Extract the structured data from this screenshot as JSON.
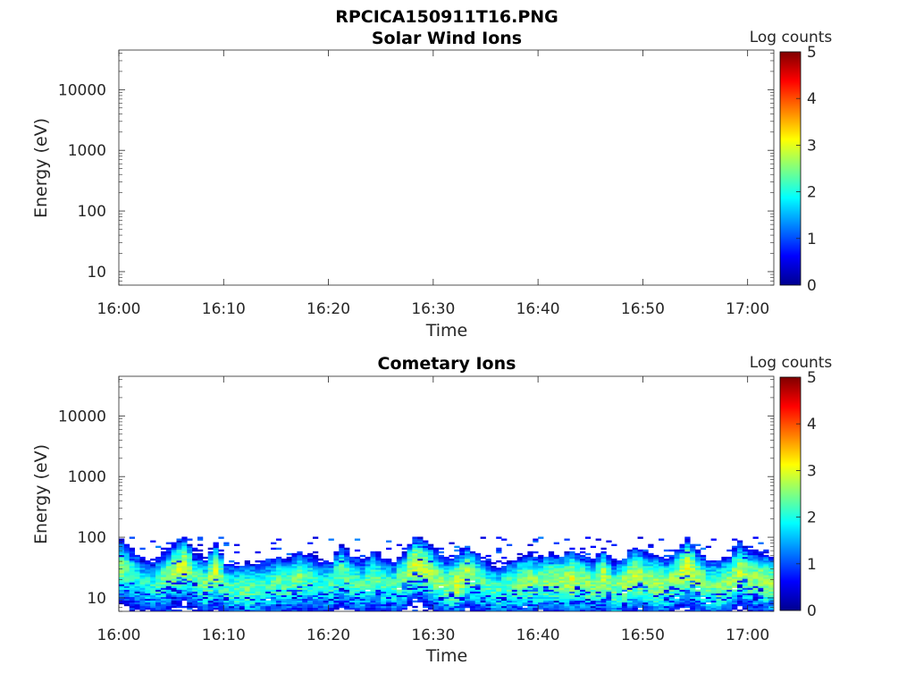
{
  "figure": {
    "title": "RPCICA150911T16.PNG"
  },
  "chart_data": [
    {
      "type": "heatmap",
      "title": "Solar Wind Ions",
      "xlabel": "Time",
      "ylabel": "Energy (eV)",
      "x_ticks": [
        "16:00",
        "16:10",
        "16:20",
        "16:30",
        "16:40",
        "16:50",
        "17:00"
      ],
      "x_range_minutes": [
        0,
        62.5
      ],
      "y_scale": "log",
      "y_ticks": [
        "10",
        "100",
        "1000",
        "10000"
      ],
      "y_range": [
        6,
        45000
      ],
      "colorbar": {
        "label": "Log counts",
        "range": [
          0,
          5
        ],
        "ticks": [
          "0",
          "1",
          "2",
          "3",
          "4",
          "5"
        ],
        "colormap": "jet"
      },
      "band": []
    },
    {
      "type": "heatmap",
      "title": "Cometary Ions",
      "xlabel": "Time",
      "ylabel": "Energy (eV)",
      "x_ticks": [
        "16:00",
        "16:10",
        "16:20",
        "16:30",
        "16:40",
        "16:50",
        "17:00"
      ],
      "x_range_minutes": [
        0,
        62.5
      ],
      "y_scale": "log",
      "y_ticks": [
        "10",
        "100",
        "1000",
        "10000"
      ],
      "y_range": [
        6,
        45000
      ],
      "colorbar": {
        "label": "Log counts",
        "range": [
          0,
          5
        ],
        "ticks": [
          "0",
          "1",
          "2",
          "3",
          "4",
          "5"
        ],
        "colormap": "jet"
      },
      "band": [
        {
          "t": 0,
          "e": 32,
          "c": 2.6
        },
        {
          "t": 1,
          "e": 24,
          "c": 2.2
        },
        {
          "t": 2,
          "e": 18,
          "c": 2.0
        },
        {
          "t": 3,
          "e": 16,
          "c": 2.1
        },
        {
          "t": 4,
          "e": 20,
          "c": 2.4
        },
        {
          "t": 5,
          "e": 28,
          "c": 2.7
        },
        {
          "t": 6,
          "e": 34,
          "c": 2.9
        },
        {
          "t": 7,
          "e": 22,
          "c": 2.3
        },
        {
          "t": 8,
          "e": 16,
          "c": 2.5
        },
        {
          "t": 9,
          "e": 28,
          "c": 2.8
        },
        {
          "t": 10,
          "e": 15,
          "c": 2.2
        },
        {
          "t": 11,
          "e": 14,
          "c": 2.3
        },
        {
          "t": 12,
          "e": 14,
          "c": 2.4
        },
        {
          "t": 13,
          "e": 15,
          "c": 2.3
        },
        {
          "t": 14,
          "e": 16,
          "c": 2.2
        },
        {
          "t": 15,
          "e": 18,
          "c": 2.4
        },
        {
          "t": 16,
          "e": 17,
          "c": 2.3
        },
        {
          "t": 17,
          "e": 22,
          "c": 2.5
        },
        {
          "t": 18,
          "e": 20,
          "c": 2.2
        },
        {
          "t": 19,
          "e": 16,
          "c": 2.1
        },
        {
          "t": 20,
          "e": 17,
          "c": 2.2
        },
        {
          "t": 21,
          "e": 26,
          "c": 2.5
        },
        {
          "t": 22,
          "e": 19,
          "c": 2.3
        },
        {
          "t": 23,
          "e": 16,
          "c": 2.2
        },
        {
          "t": 24,
          "e": 22,
          "c": 2.4
        },
        {
          "t": 25,
          "e": 17,
          "c": 2.3
        },
        {
          "t": 26,
          "e": 16,
          "c": 2.2
        },
        {
          "t": 27,
          "e": 22,
          "c": 2.5
        },
        {
          "t": 28,
          "e": 36,
          "c": 2.9
        },
        {
          "t": 29,
          "e": 30,
          "c": 2.8
        },
        {
          "t": 30,
          "e": 22,
          "c": 2.6
        },
        {
          "t": 31,
          "e": 16,
          "c": 2.5
        },
        {
          "t": 32,
          "e": 17,
          "c": 2.9
        },
        {
          "t": 33,
          "e": 26,
          "c": 2.7
        },
        {
          "t": 34,
          "e": 20,
          "c": 2.4
        },
        {
          "t": 35,
          "e": 15,
          "c": 2.2
        },
        {
          "t": 36,
          "e": 13,
          "c": 2.2
        },
        {
          "t": 37,
          "e": 16,
          "c": 2.3
        },
        {
          "t": 38,
          "e": 18,
          "c": 2.5
        },
        {
          "t": 39,
          "e": 19,
          "c": 2.6
        },
        {
          "t": 40,
          "e": 18,
          "c": 2.5
        },
        {
          "t": 41,
          "e": 20,
          "c": 2.6
        },
        {
          "t": 42,
          "e": 19,
          "c": 2.6
        },
        {
          "t": 43,
          "e": 21,
          "c": 2.9
        },
        {
          "t": 44,
          "e": 19,
          "c": 2.6
        },
        {
          "t": 45,
          "e": 16,
          "c": 2.5
        },
        {
          "t": 46,
          "e": 22,
          "c": 2.8
        },
        {
          "t": 47,
          "e": 14,
          "c": 2.4
        },
        {
          "t": 48,
          "e": 17,
          "c": 2.7
        },
        {
          "t": 49,
          "e": 24,
          "c": 2.8
        },
        {
          "t": 50,
          "e": 20,
          "c": 2.6
        },
        {
          "t": 51,
          "e": 18,
          "c": 2.7
        },
        {
          "t": 52,
          "e": 17,
          "c": 2.5
        },
        {
          "t": 53,
          "e": 22,
          "c": 2.6
        },
        {
          "t": 54,
          "e": 32,
          "c": 3.0
        },
        {
          "t": 55,
          "e": 22,
          "c": 2.6
        },
        {
          "t": 56,
          "e": 16,
          "c": 2.4
        },
        {
          "t": 57,
          "e": 16,
          "c": 2.5
        },
        {
          "t": 58,
          "e": 18,
          "c": 2.6
        },
        {
          "t": 59,
          "e": 28,
          "c": 2.8
        },
        {
          "t": 60,
          "e": 22,
          "c": 2.6
        },
        {
          "t": 61,
          "e": 20,
          "c": 2.7
        },
        {
          "t": 62,
          "e": 18,
          "c": 2.6
        }
      ]
    }
  ]
}
